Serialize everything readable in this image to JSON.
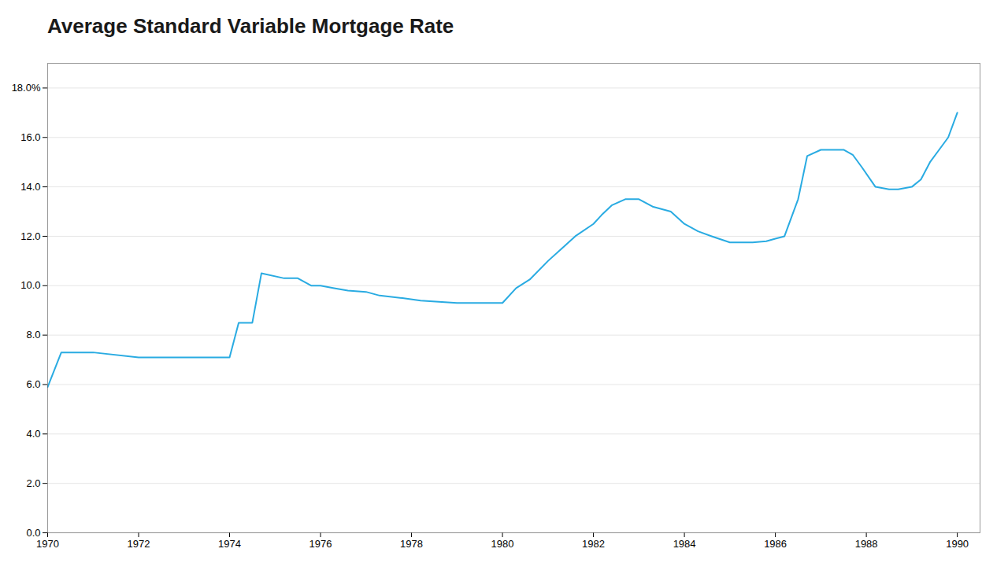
{
  "chart_data": {
    "type": "line",
    "title": "Average Standard Variable Mortgage Rate",
    "color": "#29abe2",
    "grid": "y",
    "xlim": [
      1970,
      1990.5
    ],
    "xticks": [
      1970,
      1972,
      1974,
      1976,
      1978,
      1980,
      1982,
      1984,
      1986,
      1988,
      1990
    ],
    "ylim": [
      0.0,
      19.0
    ],
    "yticks": [
      {
        "value": 0.0,
        "label": "0.0"
      },
      {
        "value": 2.0,
        "label": "2.0"
      },
      {
        "value": 4.0,
        "label": "4.0"
      },
      {
        "value": 6.0,
        "label": "6.0"
      },
      {
        "value": 8.0,
        "label": "8.0"
      },
      {
        "value": 10.0,
        "label": "10.0"
      },
      {
        "value": 12.0,
        "label": "12.0"
      },
      {
        "value": 14.0,
        "label": "14.0"
      },
      {
        "value": 16.0,
        "label": "16.0"
      },
      {
        "value": 18.0,
        "label": "18.0%"
      }
    ],
    "x": [
      1970.0,
      1970.3,
      1971.0,
      1972.0,
      1972.5,
      1973.5,
      1974.0,
      1974.2,
      1974.5,
      1974.7,
      1975.2,
      1975.5,
      1975.8,
      1976.0,
      1976.3,
      1976.6,
      1977.0,
      1977.3,
      1977.8,
      1978.2,
      1978.6,
      1979.0,
      1979.3,
      1979.8,
      1980.0,
      1980.3,
      1980.6,
      1981.0,
      1981.3,
      1981.6,
      1982.0,
      1982.2,
      1982.4,
      1982.7,
      1983.0,
      1983.3,
      1983.7,
      1984.0,
      1984.3,
      1984.6,
      1985.0,
      1985.3,
      1985.5,
      1985.8,
      1986.0,
      1986.2,
      1986.5,
      1986.7,
      1987.0,
      1987.2,
      1987.5,
      1987.7,
      1987.9,
      1988.2,
      1988.5,
      1988.7,
      1989.0,
      1989.2,
      1989.4,
      1989.6,
      1989.8,
      1990.0
    ],
    "values": [
      5.9,
      7.3,
      7.3,
      7.1,
      7.1,
      7.1,
      7.1,
      8.5,
      8.5,
      10.5,
      10.3,
      10.3,
      10.0,
      10.0,
      9.9,
      9.8,
      9.75,
      9.6,
      9.5,
      9.4,
      9.35,
      9.3,
      9.3,
      9.3,
      9.3,
      9.9,
      10.25,
      11.0,
      11.5,
      12.0,
      12.5,
      12.9,
      13.25,
      13.5,
      13.5,
      13.2,
      13.0,
      12.5,
      12.2,
      12.0,
      11.75,
      11.75,
      11.75,
      11.8,
      11.9,
      12.0,
      13.5,
      15.25,
      15.5,
      15.5,
      15.5,
      15.3,
      14.8,
      14.0,
      13.9,
      13.9,
      14.0,
      14.3,
      15.0,
      15.5,
      16.0,
      17.0
    ]
  }
}
